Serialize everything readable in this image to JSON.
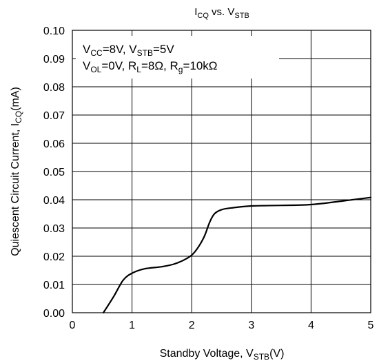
{
  "chart_data": {
    "type": "line",
    "title": {
      "main": "I",
      "main_sub": "CQ",
      "vs": " vs. V",
      "vs_sub": "STB"
    },
    "xlabel": {
      "pre": "Standby Voltage, V",
      "sub": "STB",
      "post": "(V)"
    },
    "ylabel": {
      "pre": "Quiescent Circuit Current, I",
      "sub": "CQ",
      "post": "(mA)"
    },
    "xlim": [
      0,
      5
    ],
    "ylim": [
      0,
      0.1
    ],
    "x_ticks": [
      "0",
      "1",
      "2",
      "3",
      "4",
      "5"
    ],
    "y_ticks": [
      "0.00",
      "0.01",
      "0.02",
      "0.03",
      "0.04",
      "0.05",
      "0.06",
      "0.07",
      "0.08",
      "0.09",
      "0.10"
    ],
    "grid": true,
    "annotations": {
      "line1": {
        "a": "V",
        "a_sub": "CC",
        "b": "=8V, V",
        "b_sub": "STB",
        "c": "=5V"
      },
      "line2": {
        "a": "V",
        "a_sub": "OL",
        "b": "=0V, R",
        "b_sub": "L",
        "c": "=8Ω, R",
        "c_sub": "g",
        "d": "=10kΩ"
      }
    },
    "series": [
      {
        "x": [
          0.52,
          0.7,
          0.85,
          1.0,
          1.2,
          1.5,
          1.7,
          1.9,
          2.05,
          2.2,
          2.3,
          2.38,
          2.5,
          2.7,
          3.0,
          3.5,
          4.0,
          4.5,
          5.0
        ],
        "y": [
          0.0,
          0.006,
          0.0115,
          0.014,
          0.0155,
          0.0163,
          0.0172,
          0.019,
          0.0215,
          0.0265,
          0.032,
          0.035,
          0.0365,
          0.0372,
          0.0378,
          0.038,
          0.0383,
          0.0395,
          0.0408
        ],
        "color": "#000000"
      }
    ]
  }
}
